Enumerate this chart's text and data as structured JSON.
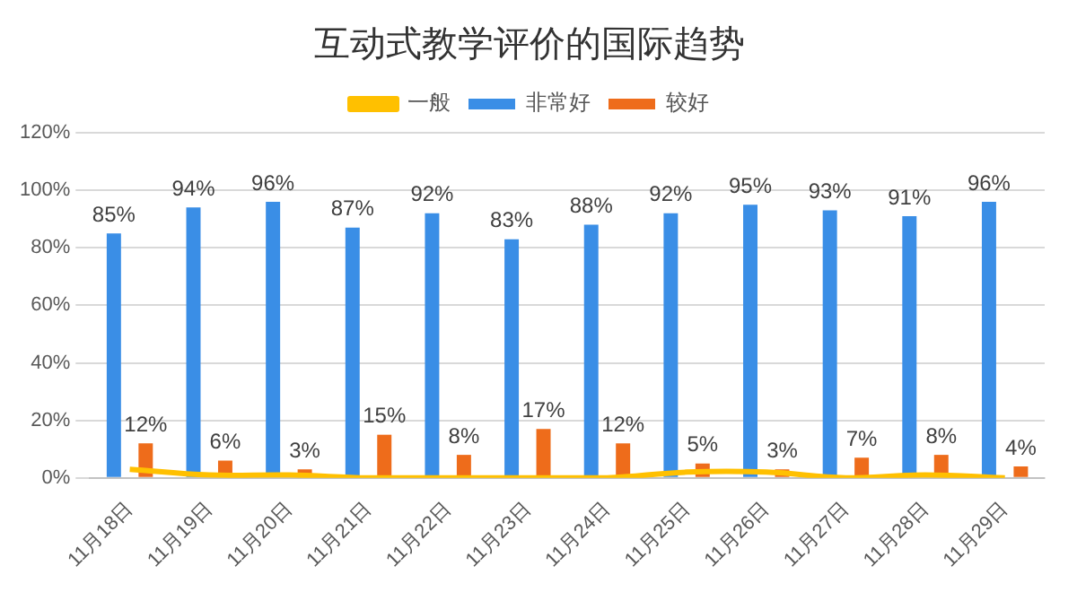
{
  "chart_data": {
    "type": "bar",
    "title": "互动式教学评价的国际趋势",
    "categories": [
      "11月18日",
      "11月19日",
      "11月20日",
      "11月21日",
      "11月22日",
      "11月23日",
      "11月24日",
      "11月25日",
      "11月26日",
      "11月27日",
      "11月28日",
      "11月29日"
    ],
    "series": [
      {
        "name": "非常好",
        "color": "#3a8ee6",
        "values": [
          85,
          94,
          96,
          87,
          92,
          83,
          88,
          92,
          95,
          93,
          91,
          96
        ],
        "value_labels": [
          "85%",
          "94%",
          "96%",
          "87%",
          "92%",
          "83%",
          "88%",
          "92%",
          "95%",
          "93%",
          "91%",
          "96%"
        ]
      },
      {
        "name": "较好",
        "color": "#ee6c1b",
        "values": [
          12,
          6,
          3,
          15,
          8,
          17,
          12,
          5,
          3,
          7,
          8,
          4
        ],
        "value_labels": [
          "12%",
          "6%",
          "3%",
          "15%",
          "8%",
          "17%",
          "12%",
          "5%",
          "3%",
          "7%",
          "8%",
          "4%"
        ]
      },
      {
        "name": "一般",
        "type": "line",
        "color": "#ffc000",
        "values": [
          3,
          1,
          1,
          0,
          0,
          0,
          0,
          2,
          2,
          0,
          1,
          0
        ]
      }
    ],
    "ylim": [
      0,
      120
    ],
    "yticks": [
      {
        "value": 0,
        "label": "0%"
      },
      {
        "value": 20,
        "label": "20%"
      },
      {
        "value": 40,
        "label": "40%"
      },
      {
        "value": 60,
        "label": "60%"
      },
      {
        "value": 80,
        "label": "80%"
      },
      {
        "value": 100,
        "label": "100%"
      },
      {
        "value": 120,
        "label": "120%"
      }
    ],
    "grid": "y",
    "legend": "top",
    "marker": "none"
  }
}
